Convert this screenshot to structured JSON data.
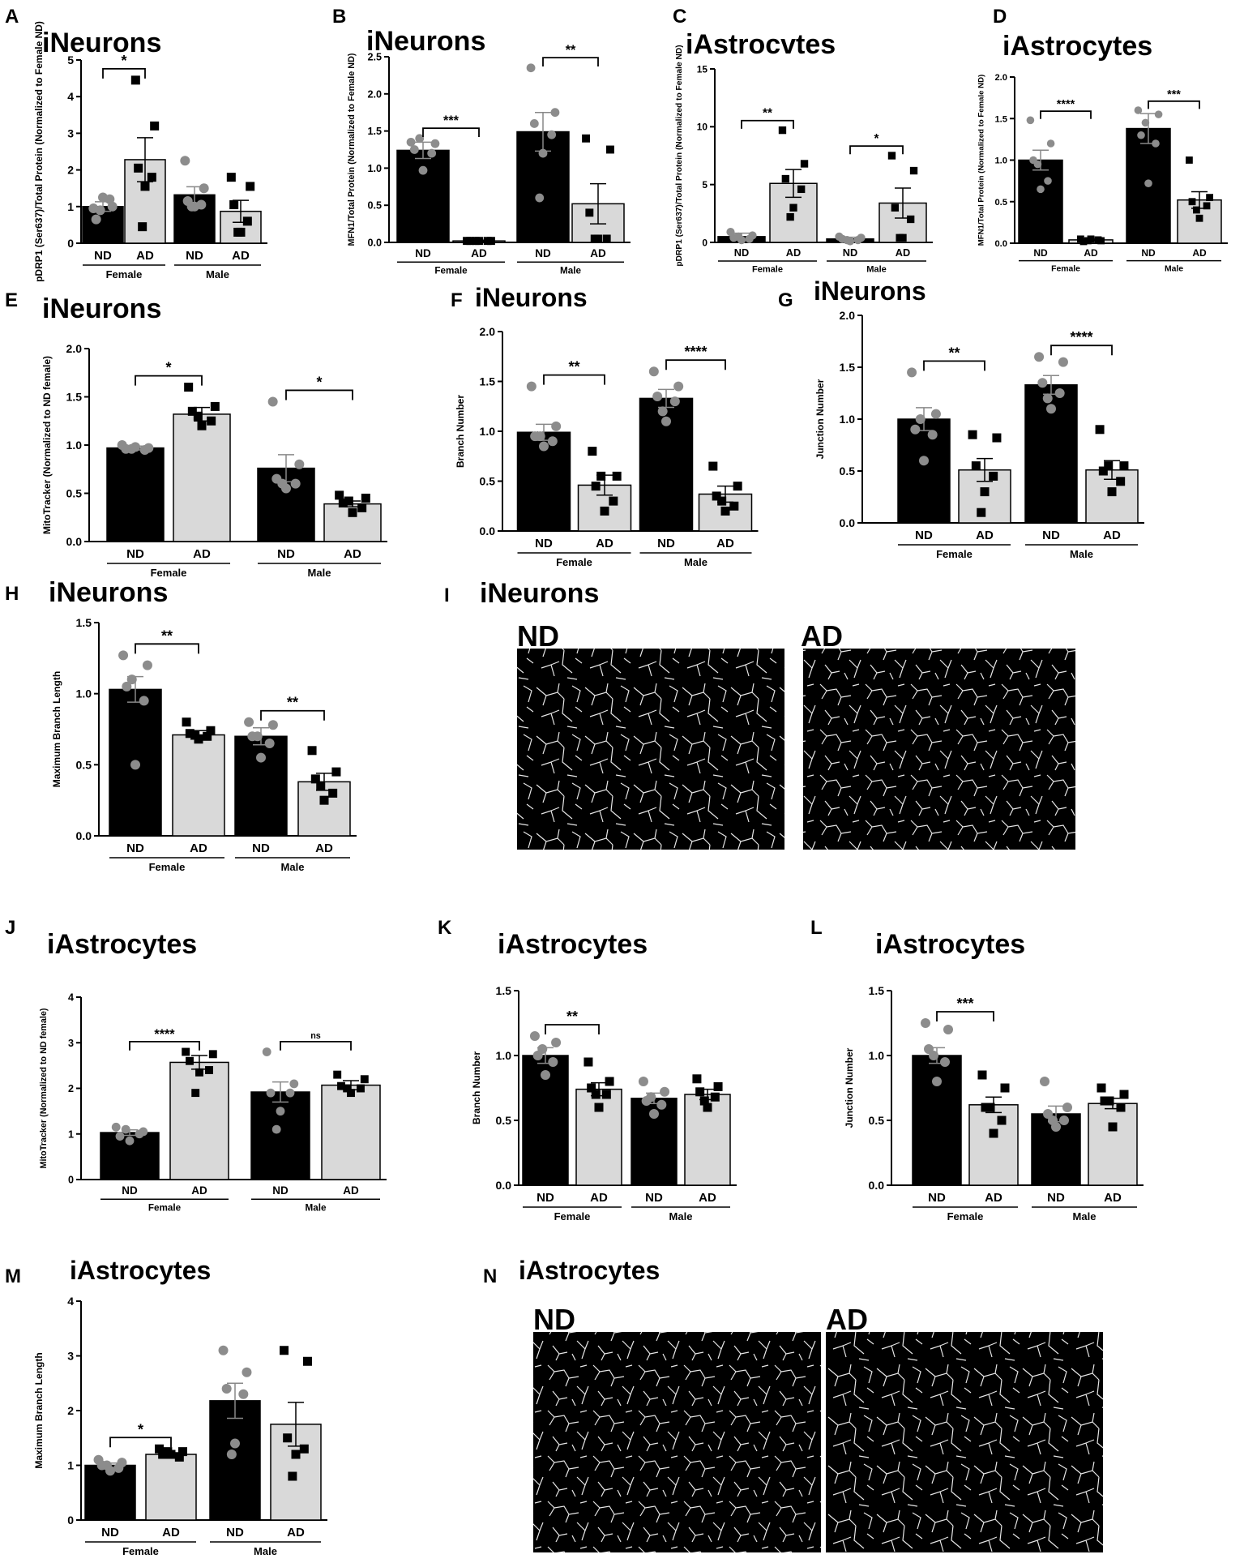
{
  "palette": {
    "nd": "#000000",
    "ad": "#d9d9d9",
    "nd_dot": "#8c8c8c",
    "ad_dot": "#000000",
    "axis": "#000000",
    "image_bg": "#000000",
    "image_line": "#e6e6e6"
  },
  "chart_data": [
    {
      "letter": "A",
      "type": "bar",
      "title": "iNeurons",
      "ylabel": "pDRP1 (Ser637)/Total Protein (Normalized to Female ND)",
      "ylim": [
        0,
        5
      ],
      "yticks": [
        "0",
        "1",
        "2",
        "3",
        "4",
        "5"
      ],
      "categories": [
        "ND",
        "AD",
        "ND",
        "AD"
      ],
      "groups": [
        "Female",
        "Male"
      ],
      "values": [
        1.0,
        2.28,
        1.32,
        0.87
      ],
      "errors": [
        0.13,
        0.6,
        0.22,
        0.3
      ],
      "points": [
        [
          0.95,
          1.0,
          0.65,
          1.2,
          1.25,
          0.9
        ],
        [
          4.45,
          3.2,
          2.05,
          1.8,
          1.55,
          0.45
        ],
        [
          2.25,
          1.5,
          1.15,
          1.05,
          1.0,
          1.0
        ],
        [
          1.8,
          1.55,
          1.05,
          0.6,
          0.3,
          0.3
        ]
      ],
      "significance": [
        {
          "pair": [
            0,
            1
          ],
          "label": "*"
        }
      ]
    },
    {
      "letter": "B",
      "type": "bar",
      "title": "iNeurons",
      "ylabel": "MFN1/Total Protein (Normalized to Female ND)",
      "ylim": [
        0,
        2.5
      ],
      "yticks": [
        "0.0",
        "0.5",
        "1.0",
        "1.5",
        "2.0",
        "2.5"
      ],
      "categories": [
        "ND",
        "AD",
        "ND",
        "AD"
      ],
      "groups": [
        "Female",
        "Male"
      ],
      "values": [
        1.24,
        0.02,
        1.49,
        0.52
      ],
      "errors": [
        0.11,
        0.01,
        0.26,
        0.27
      ],
      "points": [
        [
          1.35,
          1.33,
          1.25,
          1.2,
          0.97,
          1.4
        ],
        [
          0.02,
          0.02,
          0.02,
          0.02,
          0.02,
          0.02
        ],
        [
          2.35,
          1.75,
          1.6,
          1.45,
          1.2,
          0.6
        ],
        [
          1.4,
          1.25,
          0.4,
          0.05,
          0.05,
          0.05
        ]
      ],
      "significance": [
        {
          "pair": [
            0,
            1
          ],
          "label": "***"
        },
        {
          "pair": [
            2,
            3
          ],
          "label": "**"
        }
      ]
    },
    {
      "letter": "C",
      "type": "bar",
      "title": "iAstrocvtes",
      "ylabel": "pDRP1 (Ser637)/Total Protein (Normalized to Female ND)",
      "ylim": [
        0,
        15
      ],
      "yticks": [
        "0",
        "5",
        "10",
        "15"
      ],
      "categories": [
        "ND",
        "AD",
        "ND",
        "AD"
      ],
      "groups": [
        "Female",
        "Male"
      ],
      "values": [
        0.5,
        5.1,
        0.3,
        3.4
      ],
      "errors": [
        0.3,
        1.2,
        0.15,
        1.3
      ],
      "points": [
        [
          0.9,
          0.6,
          0.4,
          0.3,
          0.2,
          0.5
        ],
        [
          9.7,
          6.8,
          5.5,
          4.6,
          3.0,
          2.2
        ],
        [
          0.5,
          0.4,
          0.3,
          0.2,
          0.1,
          0.2
        ],
        [
          7.5,
          6.2,
          3.0,
          2.0,
          0.4,
          0.4
        ]
      ],
      "significance": [
        {
          "pair": [
            0,
            1
          ],
          "label": "**"
        },
        {
          "pair": [
            2,
            3
          ],
          "label": "*"
        }
      ]
    },
    {
      "letter": "D",
      "type": "bar",
      "title": "iAstrocytes",
      "ylabel": "MFN1/Total Protein (Normalized to Female ND)",
      "ylim": [
        0,
        2.0
      ],
      "yticks": [
        "0.0",
        "0.5",
        "1.0",
        "1.5",
        "2.0"
      ],
      "categories": [
        "ND",
        "AD",
        "ND",
        "AD"
      ],
      "groups": [
        "Female",
        "Male"
      ],
      "values": [
        1.0,
        0.04,
        1.38,
        0.52
      ],
      "errors": [
        0.12,
        0.01,
        0.18,
        0.1
      ],
      "points": [
        [
          1.48,
          1.2,
          1.0,
          0.75,
          0.65,
          0.95
        ],
        [
          0.05,
          0.03,
          0.02,
          0.04,
          0.05,
          0.03
        ],
        [
          1.6,
          1.55,
          1.3,
          1.2,
          0.72,
          1.45
        ],
        [
          1.0,
          0.55,
          0.5,
          0.45,
          0.3,
          0.4
        ]
      ],
      "significance": [
        {
          "pair": [
            0,
            1
          ],
          "label": "****"
        },
        {
          "pair": [
            2,
            3
          ],
          "label": "***"
        }
      ]
    },
    {
      "letter": "E",
      "type": "bar",
      "title": "iNeurons",
      "ylabel": "MitoTracker (Normalized to ND female)",
      "ylim": [
        0,
        2.0
      ],
      "yticks": [
        "0.0",
        "0.5",
        "1.0",
        "1.5",
        "2.0"
      ],
      "categories": [
        "ND",
        "AD",
        "ND",
        "AD"
      ],
      "groups": [
        "Female",
        "Male"
      ],
      "values": [
        0.97,
        1.32,
        0.76,
        0.39
      ],
      "errors": [
        0.02,
        0.07,
        0.14,
        0.03
      ],
      "points": [
        [
          1.0,
          0.97,
          0.96,
          0.95,
          0.98,
          0.96
        ],
        [
          1.6,
          1.4,
          1.35,
          1.25,
          1.2,
          1.3
        ],
        [
          1.45,
          0.8,
          0.65,
          0.6,
          0.55,
          0.6
        ],
        [
          0.48,
          0.45,
          0.4,
          0.35,
          0.3,
          0.42
        ]
      ],
      "significance": [
        {
          "pair": [
            0,
            1
          ],
          "label": "*"
        },
        {
          "pair": [
            2,
            3
          ],
          "label": "*"
        }
      ]
    },
    {
      "letter": "F",
      "type": "bar",
      "title": "iNeurons",
      "ylabel": "Branch Number",
      "ylim": [
        0,
        2.0
      ],
      "yticks": [
        "0.0",
        "0.5",
        "1.0",
        "1.5",
        "2.0"
      ],
      "categories": [
        "ND",
        "AD",
        "ND",
        "AD"
      ],
      "groups": [
        "Female",
        "Male"
      ],
      "values": [
        0.99,
        0.46,
        1.33,
        0.37
      ],
      "errors": [
        0.08,
        0.1,
        0.09,
        0.08
      ],
      "points": [
        [
          1.45,
          1.05,
          0.95,
          0.9,
          0.85,
          0.95
        ],
        [
          0.8,
          0.55,
          0.45,
          0.3,
          0.2,
          0.55
        ],
        [
          1.6,
          1.45,
          1.35,
          1.3,
          1.1,
          1.2
        ],
        [
          0.65,
          0.45,
          0.35,
          0.25,
          0.2,
          0.3
        ]
      ],
      "significance": [
        {
          "pair": [
            0,
            1
          ],
          "label": "**"
        },
        {
          "pair": [
            2,
            3
          ],
          "label": "****"
        }
      ]
    },
    {
      "letter": "G",
      "type": "bar",
      "title": "iNeurons",
      "ylabel": "Junction Number",
      "ylim": [
        0,
        2.0
      ],
      "yticks": [
        "0.0",
        "0.5",
        "1.0",
        "1.5",
        "2.0"
      ],
      "categories": [
        "ND",
        "AD",
        "ND",
        "AD"
      ],
      "groups": [
        "Female",
        "Male"
      ],
      "values": [
        1.0,
        0.51,
        1.33,
        0.51
      ],
      "errors": [
        0.11,
        0.11,
        0.09,
        0.09
      ],
      "points": [
        [
          1.45,
          1.05,
          0.9,
          0.85,
          0.6,
          1.0
        ],
        [
          0.85,
          0.82,
          0.55,
          0.45,
          0.3,
          0.1
        ],
        [
          1.6,
          1.55,
          1.35,
          1.25,
          1.1,
          1.2
        ],
        [
          0.9,
          0.55,
          0.5,
          0.4,
          0.3,
          0.55
        ]
      ],
      "significance": [
        {
          "pair": [
            0,
            1
          ],
          "label": "**"
        },
        {
          "pair": [
            2,
            3
          ],
          "label": "****"
        }
      ]
    },
    {
      "letter": "H",
      "type": "bar",
      "title": "iNeurons",
      "ylabel": "Maximum Branch Length",
      "ylim": [
        0,
        1.5
      ],
      "yticks": [
        "0.0",
        "0.5",
        "1.0",
        "1.5"
      ],
      "categories": [
        "ND",
        "AD",
        "ND",
        "AD"
      ],
      "groups": [
        "Female",
        "Male"
      ],
      "values": [
        1.03,
        0.71,
        0.7,
        0.38
      ],
      "errors": [
        0.09,
        0.03,
        0.06,
        0.06
      ],
      "points": [
        [
          1.27,
          1.2,
          1.05,
          0.95,
          0.5,
          1.1
        ],
        [
          0.8,
          0.74,
          0.72,
          0.7,
          0.68,
          0.71
        ],
        [
          0.8,
          0.78,
          0.7,
          0.65,
          0.55,
          0.7
        ],
        [
          0.6,
          0.45,
          0.4,
          0.3,
          0.25,
          0.35
        ]
      ],
      "significance": [
        {
          "pair": [
            0,
            1
          ],
          "label": "**"
        },
        {
          "pair": [
            2,
            3
          ],
          "label": "**"
        }
      ]
    },
    {
      "letter": "J",
      "type": "bar",
      "title": "iAstrocytes",
      "ylabel": "MitoTracker (Normalized to ND female)",
      "ylim": [
        0,
        4
      ],
      "yticks": [
        "0",
        "1",
        "2",
        "3",
        "4"
      ],
      "categories": [
        "ND",
        "AD",
        "ND",
        "AD"
      ],
      "groups": [
        "Female",
        "Male"
      ],
      "values": [
        1.03,
        2.57,
        1.92,
        2.07
      ],
      "errors": [
        0.06,
        0.15,
        0.22,
        0.1
      ],
      "points": [
        [
          1.15,
          1.05,
          0.95,
          1.0,
          0.85,
          1.1
        ],
        [
          2.8,
          2.75,
          2.6,
          2.4,
          2.35,
          1.9
        ],
        [
          2.8,
          2.1,
          1.9,
          1.9,
          1.5,
          1.1
        ],
        [
          2.3,
          2.2,
          2.05,
          2.0,
          1.9,
          2.0
        ]
      ],
      "significance": [
        {
          "pair": [
            0,
            1
          ],
          "label": "****"
        },
        {
          "pair": [
            2,
            3
          ],
          "label": "ns"
        }
      ]
    },
    {
      "letter": "K",
      "type": "bar",
      "title": "iAstrocytes",
      "ylabel": "Branch Number",
      "ylim": [
        0,
        1.5
      ],
      "yticks": [
        "0.0",
        "0.5",
        "1.0",
        "1.5"
      ],
      "categories": [
        "ND",
        "AD",
        "ND",
        "AD"
      ],
      "groups": [
        "Female",
        "Male"
      ],
      "values": [
        1.0,
        0.74,
        0.67,
        0.7
      ],
      "errors": [
        0.06,
        0.05,
        0.04,
        0.04
      ],
      "points": [
        [
          1.15,
          1.1,
          1.0,
          0.95,
          0.85,
          1.05
        ],
        [
          0.95,
          0.8,
          0.75,
          0.7,
          0.6,
          0.7
        ],
        [
          0.8,
          0.72,
          0.65,
          0.62,
          0.55,
          0.68
        ],
        [
          0.82,
          0.76,
          0.72,
          0.68,
          0.6,
          0.65
        ]
      ],
      "significance": [
        {
          "pair": [
            0,
            1
          ],
          "label": "**"
        }
      ]
    },
    {
      "letter": "L",
      "type": "bar",
      "title": "iAstrocytes",
      "ylabel": "Junction Number",
      "ylim": [
        0,
        1.5
      ],
      "yticks": [
        "0.0",
        "0.5",
        "1.0",
        "1.5"
      ],
      "categories": [
        "ND",
        "AD",
        "ND",
        "AD"
      ],
      "groups": [
        "Female",
        "Male"
      ],
      "values": [
        1.0,
        0.62,
        0.55,
        0.63
      ],
      "errors": [
        0.06,
        0.06,
        0.06,
        0.04
      ],
      "points": [
        [
          1.25,
          1.2,
          1.05,
          0.95,
          0.8,
          1.0
        ],
        [
          0.85,
          0.75,
          0.6,
          0.5,
          0.4,
          0.6
        ],
        [
          0.8,
          0.6,
          0.55,
          0.5,
          0.45,
          0.5
        ],
        [
          0.75,
          0.7,
          0.65,
          0.6,
          0.45,
          0.65
        ]
      ],
      "significance": [
        {
          "pair": [
            0,
            1
          ],
          "label": "***"
        }
      ]
    },
    {
      "letter": "M",
      "type": "bar",
      "title": "iAstrocytes",
      "ylabel": "Maximum Branch Length",
      "ylim": [
        0,
        4
      ],
      "yticks": [
        "0",
        "1",
        "2",
        "3",
        "4"
      ],
      "categories": [
        "ND",
        "AD",
        "ND",
        "AD"
      ],
      "groups": [
        "Female",
        "Male"
      ],
      "values": [
        1.0,
        1.2,
        2.18,
        1.75
      ],
      "errors": [
        0.04,
        0.03,
        0.32,
        0.4
      ],
      "points": [
        [
          1.1,
          1.05,
          1.0,
          0.95,
          0.9,
          1.0
        ],
        [
          1.3,
          1.25,
          1.2,
          1.15,
          1.2,
          1.25
        ],
        [
          3.1,
          2.7,
          2.4,
          2.3,
          1.4,
          1.2
        ],
        [
          3.1,
          2.9,
          1.5,
          1.3,
          1.2,
          0.8
        ]
      ],
      "significance": [
        {
          "pair": [
            0,
            1
          ],
          "label": "*"
        }
      ]
    }
  ],
  "image_panels": [
    {
      "letter": "I",
      "title": "iNeurons",
      "labels": [
        "ND",
        "AD"
      ]
    },
    {
      "letter": "N",
      "title": "iAstrocytes",
      "labels": [
        "ND",
        "AD"
      ]
    }
  ]
}
